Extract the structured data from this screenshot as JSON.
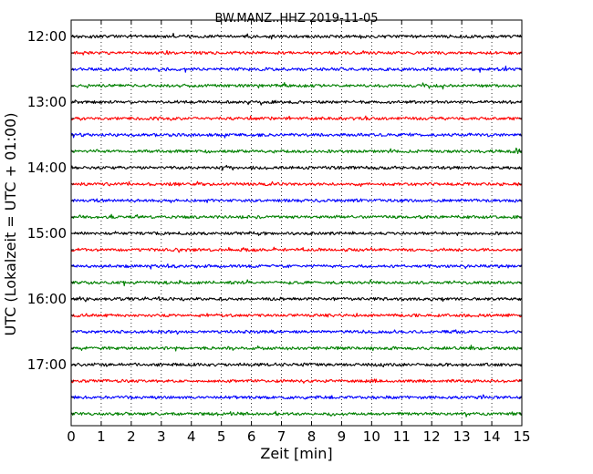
{
  "chart_data": {
    "type": "line",
    "title": "BW.MANZ..HHZ 2019-11-05",
    "xlabel": "Zeit  [min]",
    "ylabel": "UTC (Lokalzeit = UTC + 01:00)",
    "xlim": [
      0,
      15
    ],
    "x_ticks": [
      "0",
      "1",
      "2",
      "3",
      "4",
      "5",
      "6",
      "7",
      "8",
      "9",
      "10",
      "11",
      "12",
      "13",
      "14",
      "15"
    ],
    "y_ticks": [
      "12:00",
      "13:00",
      "14:00",
      "15:00",
      "16:00",
      "17:00"
    ],
    "grid": "vertical-dotted",
    "trace_colors": [
      "#000000",
      "#ff0000",
      "#0000ff",
      "#008000"
    ],
    "trace_starts": [
      "12:00",
      "12:15",
      "12:30",
      "12:45",
      "13:00",
      "13:15",
      "13:30",
      "13:45",
      "14:00",
      "14:15",
      "14:30",
      "14:45",
      "15:00",
      "15:15",
      "15:30",
      "15:45",
      "16:00",
      "16:15",
      "16:30",
      "16:45",
      "17:00",
      "17:15",
      "17:30",
      "17:45"
    ]
  }
}
